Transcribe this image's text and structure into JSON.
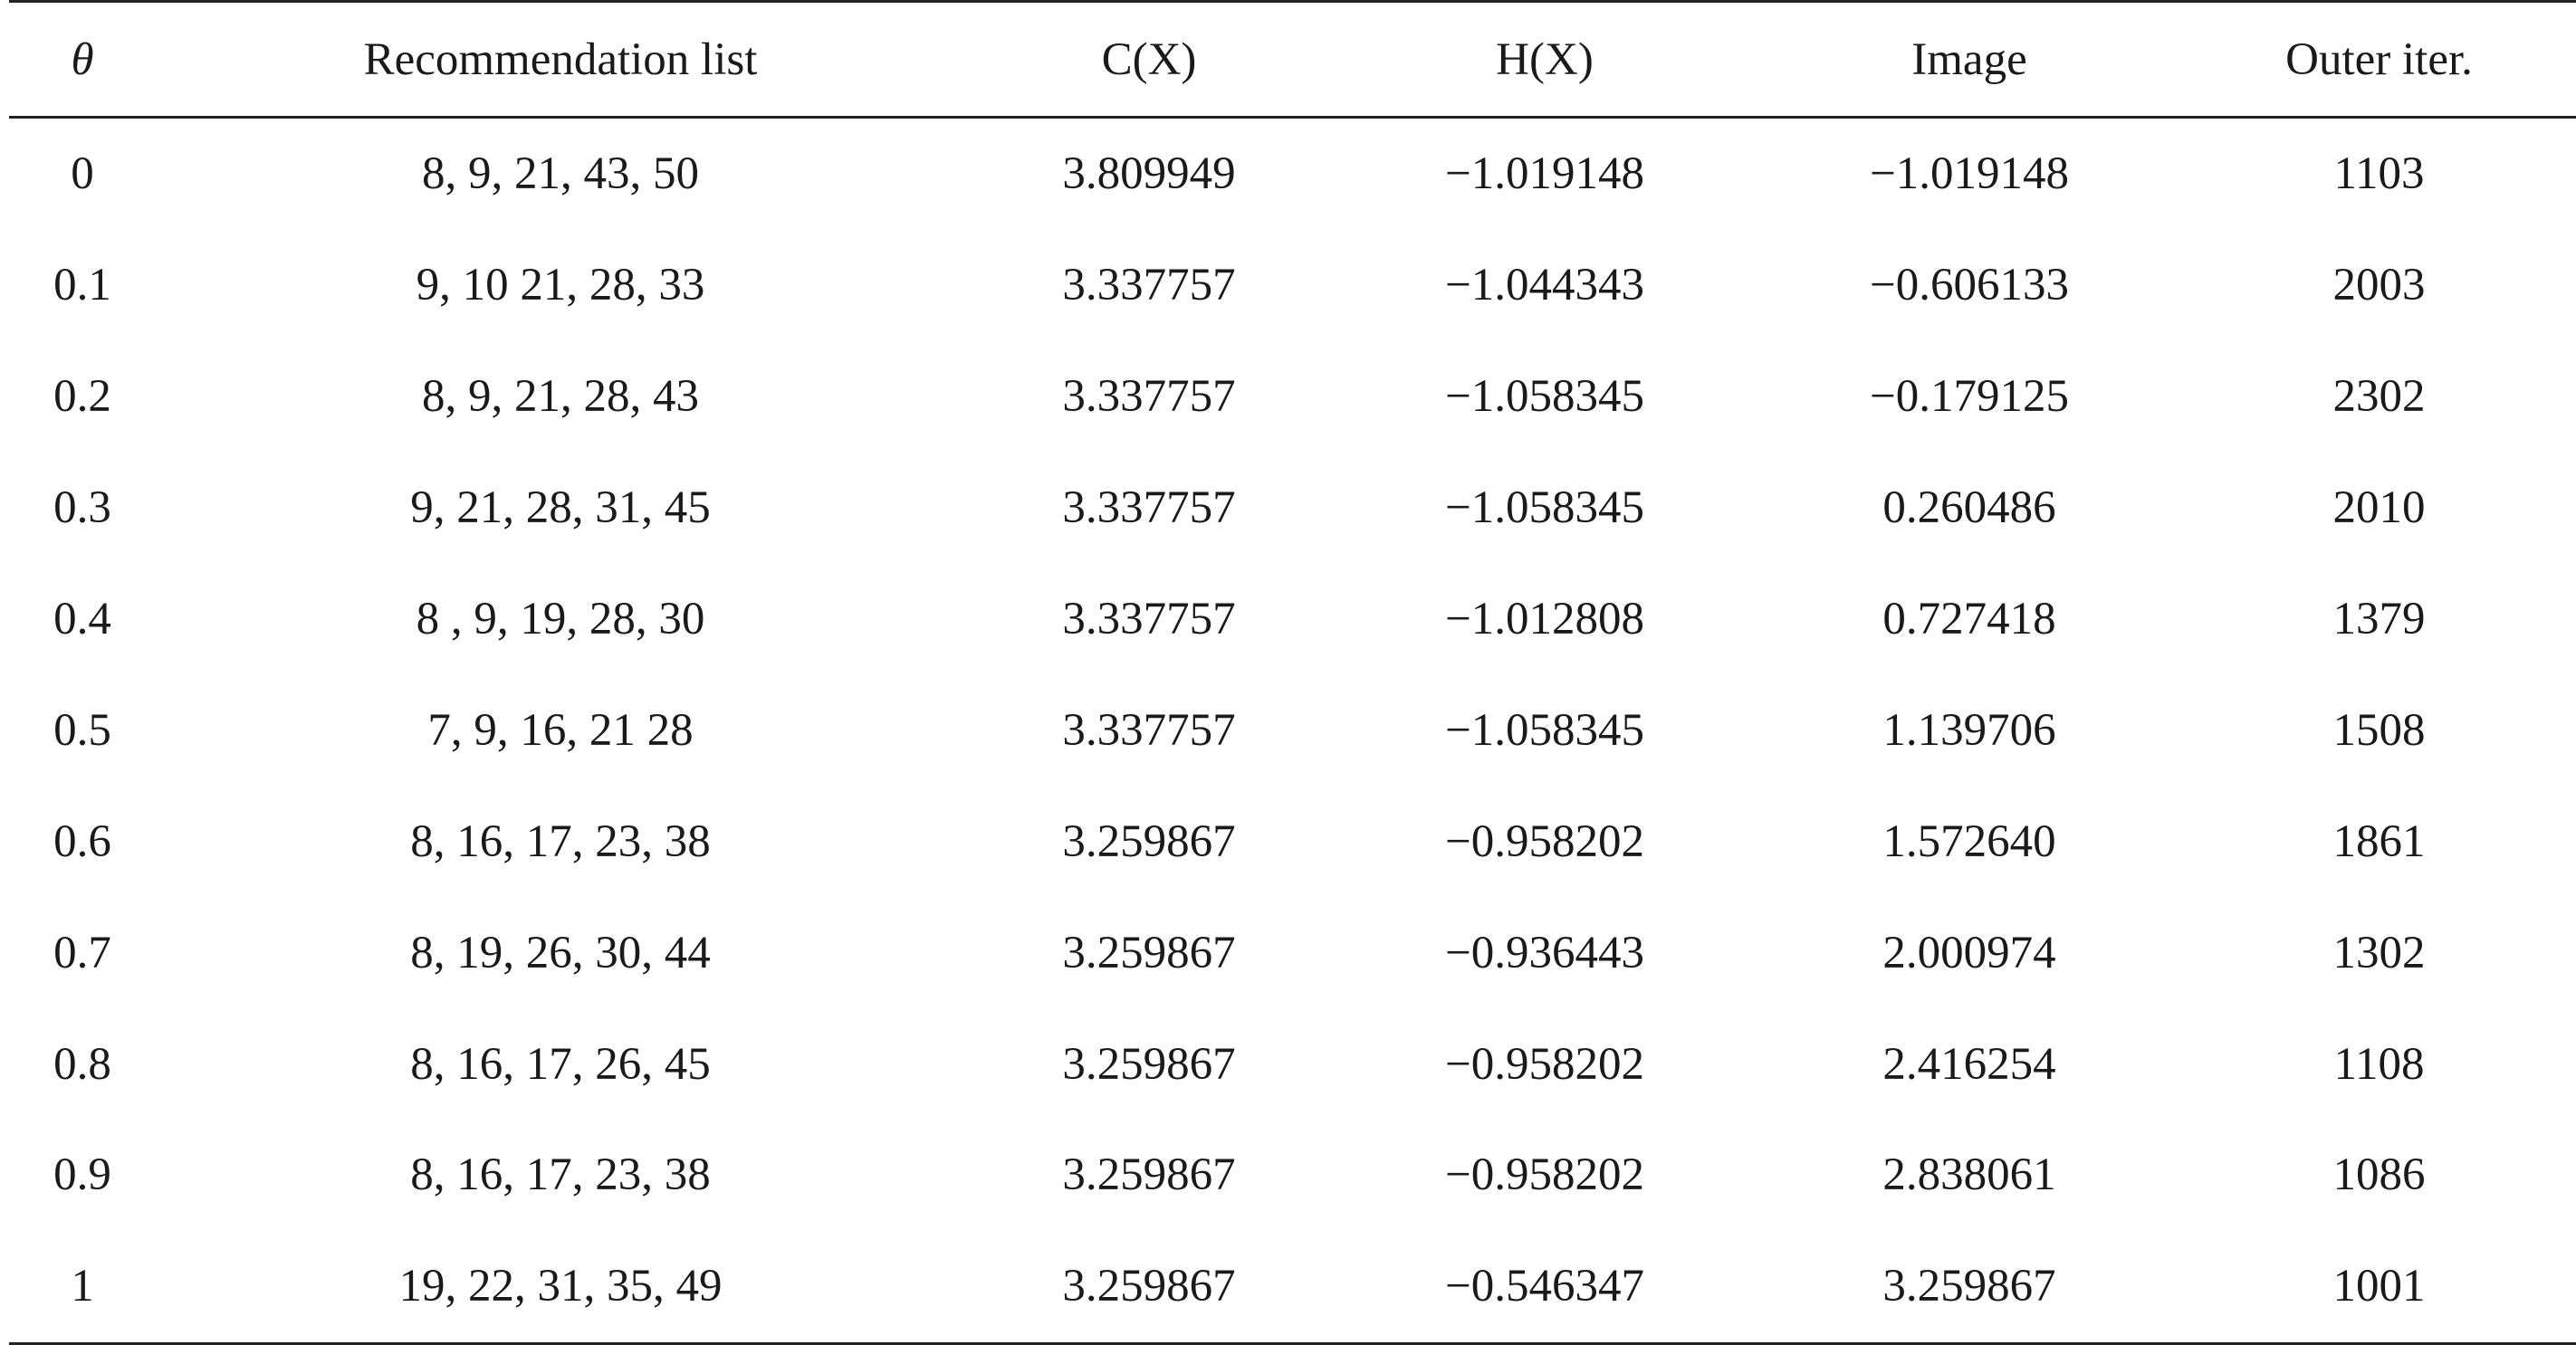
{
  "table": {
    "headers": [
      "θ",
      "Recommendation list",
      "C(X)",
      "H(X)",
      "Image",
      "Outer iter."
    ],
    "rows": [
      [
        "0",
        "8, 9, 21, 43, 50",
        "3.809949",
        "−1.019148",
        "−1.019148",
        "1103"
      ],
      [
        "0.1",
        "9, 10 21, 28, 33",
        "3.337757",
        "−1.044343",
        "−0.606133",
        "2003"
      ],
      [
        "0.2",
        "8, 9, 21, 28, 43",
        "3.337757",
        "−1.058345",
        "−0.179125",
        "2302"
      ],
      [
        "0.3",
        "9, 21, 28, 31, 45",
        "3.337757",
        "−1.058345",
        "0.260486",
        "2010"
      ],
      [
        "0.4",
        "8 , 9, 19, 28, 30",
        "3.337757",
        "−1.012808",
        "0.727418",
        "1379"
      ],
      [
        "0.5",
        "7, 9, 16, 21 28",
        "3.337757",
        "−1.058345",
        "1.139706",
        "1508"
      ],
      [
        "0.6",
        "8, 16, 17, 23, 38",
        "3.259867",
        "−0.958202",
        "1.572640",
        "1861"
      ],
      [
        "0.7",
        "8, 19, 26, 30, 44",
        "3.259867",
        "−0.936443",
        "2.000974",
        "1302"
      ],
      [
        "0.8",
        "8, 16, 17, 26, 45",
        "3.259867",
        "−0.958202",
        "2.416254",
        "1108"
      ],
      [
        "0.9",
        "8, 16, 17, 23, 38",
        "3.259867",
        "−0.958202",
        "2.838061",
        "1086"
      ],
      [
        "1",
        "19, 22, 31, 35, 49",
        "3.259867",
        "−0.546347",
        "3.259867",
        "1001"
      ]
    ]
  }
}
